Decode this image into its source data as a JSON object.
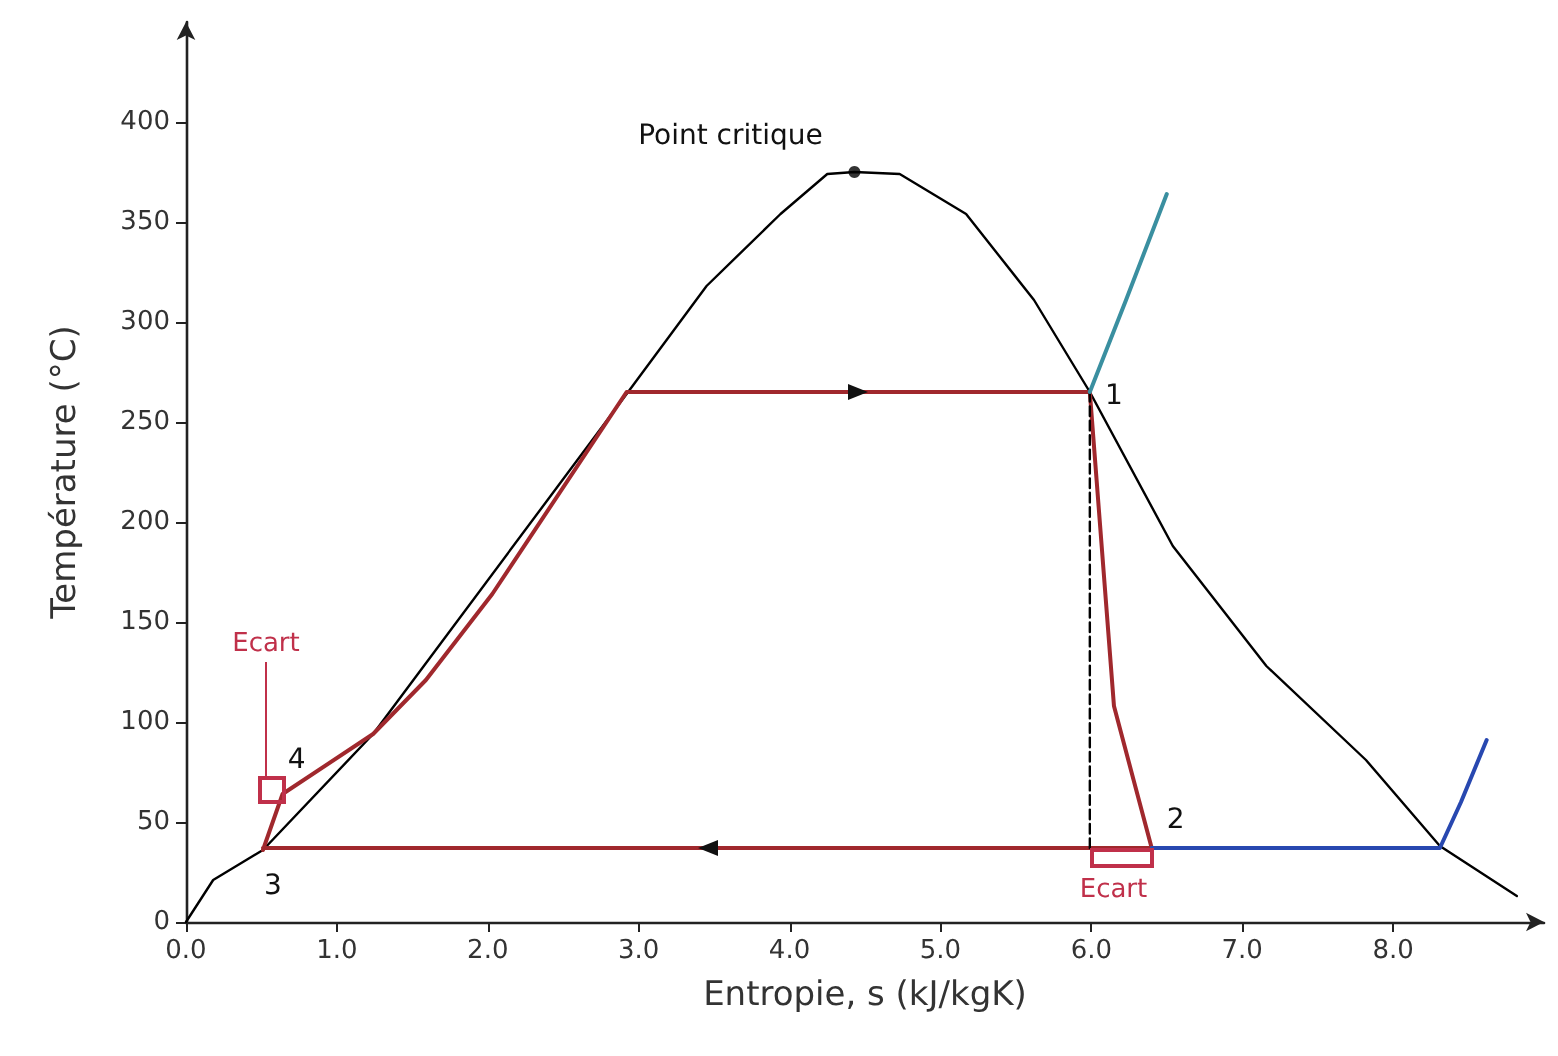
{
  "chart_data": {
    "type": "line",
    "xlabel": "Entropie, s (kJ/kgK)",
    "ylabel": "Température (°C)",
    "xlim": [
      0,
      9
    ],
    "ylim": [
      0,
      450
    ],
    "xticks": [
      {
        "value": 0,
        "label": "0.0"
      },
      {
        "value": 1,
        "label": "1.0"
      },
      {
        "value": 2,
        "label": "2.0"
      },
      {
        "value": 3,
        "label": "3.0"
      },
      {
        "value": 4,
        "label": "4.0"
      },
      {
        "value": 5,
        "label": "5.0"
      },
      {
        "value": 6,
        "label": "6.0"
      },
      {
        "value": 7,
        "label": "7.0"
      },
      {
        "value": 8,
        "label": "8.0"
      }
    ],
    "yticks": [
      0,
      50,
      100,
      150,
      200,
      250,
      300,
      350,
      400
    ],
    "marker": "none",
    "line_style": "solid",
    "series": [
      {
        "color": "#000000",
        "x": [
          0,
          0.18,
          0.51,
          1.24,
          2.92,
          3.45,
          3.94,
          4.25,
          4.43,
          4.73,
          5.17,
          5.62,
          5.99,
          6.54,
          7.16,
          7.82,
          8.31,
          8.82
        ],
        "values": [
          0,
          21,
          36,
          94,
          264,
          318,
          354,
          374,
          375,
          374,
          354,
          311,
          265,
          188,
          128,
          81,
          38,
          13
        ]
      },
      {
        "color": "#a0282d",
        "x": [
          0.51,
          0.64,
          1.24,
          1.59,
          2.03,
          2.92,
          5.99,
          6.15,
          6.28,
          6.4,
          0.51
        ],
        "values": [
          36,
          64,
          94,
          121,
          164,
          265,
          265,
          108,
          71,
          37,
          37
        ]
      },
      {
        "color": "#000000",
        "line_style": "dashed",
        "x": [
          5.99,
          5.99
        ],
        "values": [
          265,
          37
        ]
      },
      {
        "color": "#3a8fa0",
        "x": [
          5.99,
          6.23,
          6.5
        ],
        "values": [
          265,
          311,
          364
        ]
      },
      {
        "color": "#2848b0",
        "x": [
          6.4,
          8.31,
          8.45,
          8.62
        ],
        "values": [
          37,
          37,
          60,
          91
        ]
      },
      {
        "type": "scatter",
        "marker": "circle",
        "color": "#000000",
        "x": [
          4.43
        ],
        "values": [
          375
        ]
      }
    ],
    "annotations": [
      {
        "text": "Point critique",
        "x": 4.43,
        "y": 375
      },
      {
        "text": "1",
        "x": 5.99,
        "y": 265
      },
      {
        "text": "2",
        "x": 6.4,
        "y": 37
      },
      {
        "text": "3",
        "x": 0.51,
        "y": 36
      },
      {
        "text": "4",
        "x": 0.64,
        "y": 64
      },
      {
        "text": "Ecart",
        "x": 0.57,
        "y": 66
      },
      {
        "text": "Ecart",
        "x": 6.2,
        "y": 32
      }
    ]
  }
}
